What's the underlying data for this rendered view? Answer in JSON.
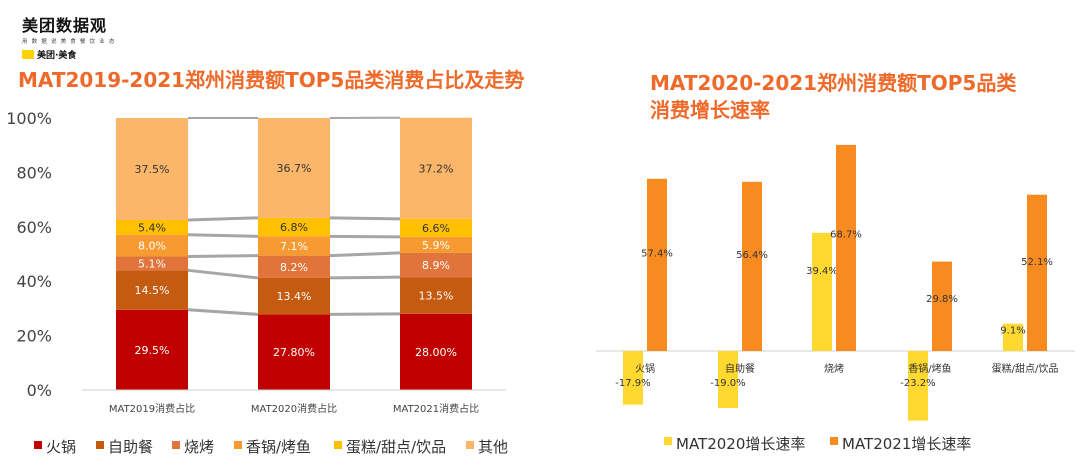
{
  "logo": {
    "name": "美团数据观",
    "tagline": "用 数 据 说 美 食 餐 饮 业 态",
    "badge": "美团·美食",
    "badge_mark": "美团"
  },
  "titles": {
    "left": "MAT2019-2021郑州消费额TOP5品类消费占比及走势",
    "right_line1": "MAT2020-2021郑州消费额TOP5品类",
    "right_line2": "消费增长速率"
  },
  "chart_data": [
    {
      "type": "bar",
      "stacked": true,
      "categories": [
        "MAT2019消费占比",
        "MAT2020消费占比",
        "MAT2021消费占比"
      ],
      "ylim": [
        0,
        100
      ],
      "yticks": [
        "0%",
        "20%",
        "40%",
        "60%",
        "80%",
        "100%"
      ],
      "legend_position": "bottom",
      "connector_lines": true,
      "series": [
        {
          "name": "火锅",
          "color": "#c00000",
          "values": [
            29.5,
            27.8,
            28.0
          ],
          "labels": [
            "29.5%",
            "27.80%",
            "28.00%"
          ],
          "label_color": "#ffffff"
        },
        {
          "name": "自助餐",
          "color": "#c55a11",
          "values": [
            14.5,
            13.4,
            13.5
          ],
          "labels": [
            "14.5%",
            "13.4%",
            "13.5%"
          ],
          "label_color": "#ffffff"
        },
        {
          "name": "烧烤",
          "color": "#e0743a",
          "values": [
            5.1,
            8.2,
            8.9
          ],
          "labels": [
            "5.1%",
            "8.2%",
            "8.9%"
          ],
          "label_color": "#ffffff"
        },
        {
          "name": "香锅/烤鱼",
          "color": "#f79a32",
          "values": [
            8.0,
            7.1,
            5.9
          ],
          "labels": [
            "8.0%",
            "7.1%",
            "5.9%"
          ],
          "label_color": "#ffffff"
        },
        {
          "name": "蛋糕/甜点/饮品",
          "color": "#ffc000",
          "values": [
            5.4,
            6.8,
            6.6
          ],
          "labels": [
            "5.4%",
            "6.8%",
            "6.6%"
          ],
          "label_color": "#333333"
        },
        {
          "name": "其他",
          "color": "#fbb66a",
          "values": [
            37.5,
            36.7,
            37.2
          ],
          "labels": [
            "37.5%",
            "36.7%",
            "37.2%"
          ],
          "label_color": "#333333"
        }
      ]
    },
    {
      "type": "bar",
      "categories": [
        "火锅",
        "自助餐",
        "烧烤",
        "香锅/烤鱼",
        "蛋糕/甜点/饮品"
      ],
      "legend_position": "bottom",
      "series": [
        {
          "name": "MAT2020增长速率",
          "color": "#ffd92f",
          "values": [
            -17.9,
            -19.0,
            39.4,
            -23.2,
            9.1
          ],
          "labels": [
            "-17.9%",
            "-19.0%",
            "39.4%",
            "-23.2%",
            "9.1%"
          ]
        },
        {
          "name": "MAT2021增长速率",
          "color": "#f78b1f",
          "values": [
            57.4,
            56.4,
            68.7,
            29.8,
            52.1
          ],
          "labels": [
            "57.4%",
            "56.4%",
            "68.7%",
            "29.8%",
            "52.1%"
          ]
        }
      ]
    }
  ]
}
